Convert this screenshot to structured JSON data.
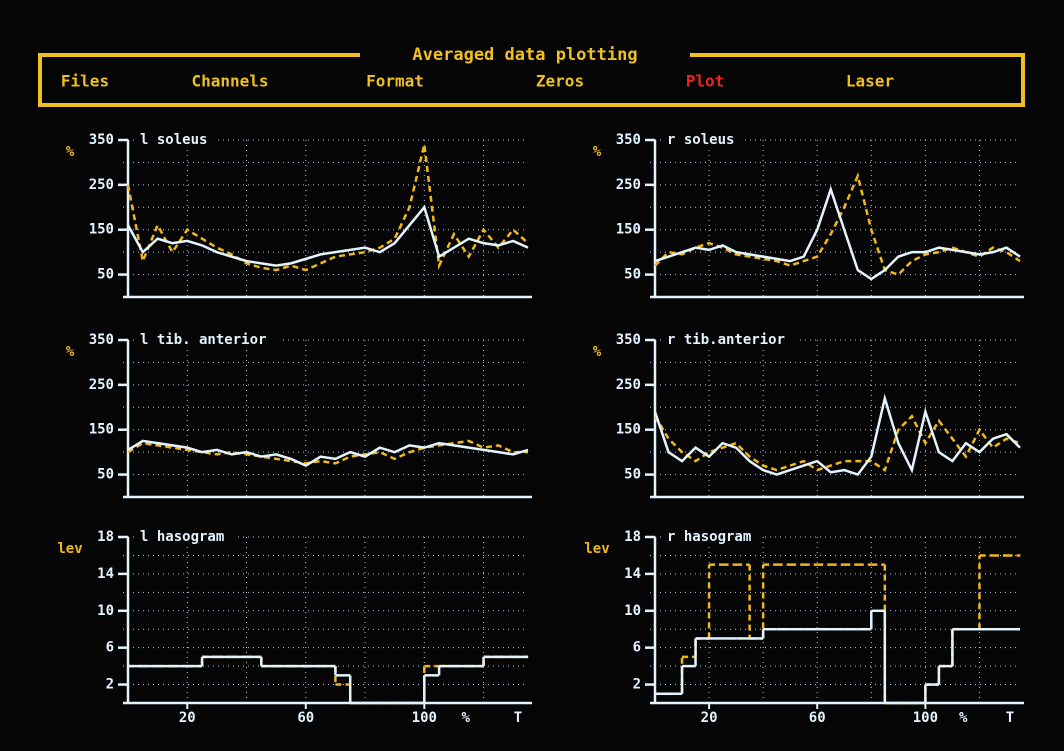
{
  "menu": {
    "title": "Averaged data plotting",
    "items": [
      "Files",
      "Channels",
      "Format",
      "Zeros",
      "Plot",
      "Laser"
    ],
    "active_index": 4,
    "color": "#f0c020",
    "active_color": "#e8281c"
  },
  "chart_data": [
    {
      "type": "line",
      "title": "l soleus",
      "y_unit": "%",
      "xlim": [
        0,
        135
      ],
      "ylim": [
        0,
        350
      ],
      "xgrid": [
        20,
        40,
        60,
        80,
        100,
        120
      ],
      "yticks": [
        50,
        150,
        250,
        350
      ],
      "yminor": [
        100,
        200,
        300
      ],
      "x": [
        0,
        5,
        10,
        15,
        20,
        25,
        30,
        35,
        40,
        45,
        50,
        55,
        60,
        65,
        70,
        75,
        80,
        85,
        90,
        95,
        100,
        105,
        110,
        115,
        120,
        125,
        130,
        135
      ],
      "series": [
        {
          "color": "#f0b818",
          "dashed": true,
          "values": [
            250,
            80,
            160,
            100,
            150,
            130,
            110,
            95,
            75,
            65,
            60,
            70,
            60,
            75,
            90,
            95,
            100,
            110,
            130,
            200,
            340,
            70,
            140,
            90,
            150,
            110,
            150,
            120
          ]
        },
        {
          "color": "#e4f4ff",
          "dashed": false,
          "values": [
            160,
            100,
            130,
            120,
            125,
            115,
            100,
            90,
            80,
            75,
            70,
            75,
            85,
            95,
            100,
            105,
            110,
            100,
            120,
            160,
            200,
            90,
            110,
            130,
            120,
            115,
            125,
            110
          ]
        }
      ]
    },
    {
      "type": "line",
      "title": "r soleus",
      "y_unit": "%",
      "xlim": [
        0,
        135
      ],
      "ylim": [
        0,
        350
      ],
      "xgrid": [
        20,
        40,
        60,
        80,
        100,
        120
      ],
      "yticks": [
        50,
        150,
        250,
        350
      ],
      "yminor": [
        100,
        200,
        300
      ],
      "x": [
        0,
        5,
        10,
        15,
        20,
        25,
        30,
        35,
        40,
        45,
        50,
        55,
        60,
        65,
        70,
        75,
        80,
        85,
        90,
        95,
        100,
        105,
        110,
        115,
        120,
        125,
        130,
        135
      ],
      "series": [
        {
          "color": "#f0b818",
          "dashed": true,
          "values": [
            70,
            100,
            95,
            110,
            120,
            110,
            95,
            90,
            85,
            80,
            70,
            80,
            90,
            140,
            200,
            270,
            150,
            60,
            50,
            80,
            95,
            100,
            110,
            100,
            90,
            110,
            100,
            80
          ]
        },
        {
          "color": "#e4f4ff",
          "dashed": false,
          "values": [
            80,
            90,
            100,
            110,
            105,
            115,
            100,
            95,
            90,
            85,
            80,
            90,
            150,
            240,
            150,
            60,
            40,
            60,
            90,
            100,
            100,
            110,
            105,
            100,
            95,
            100,
            110,
            90
          ]
        }
      ]
    },
    {
      "type": "line",
      "title": "l tib. anterior",
      "y_unit": "%",
      "xlim": [
        0,
        135
      ],
      "ylim": [
        0,
        350
      ],
      "xgrid": [
        20,
        40,
        60,
        80,
        100,
        120
      ],
      "yticks": [
        50,
        150,
        250,
        350
      ],
      "yminor": [
        100,
        200,
        300
      ],
      "x": [
        0,
        5,
        10,
        15,
        20,
        25,
        30,
        35,
        40,
        45,
        50,
        55,
        60,
        65,
        70,
        75,
        80,
        85,
        90,
        95,
        100,
        105,
        110,
        115,
        120,
        125,
        130,
        135
      ],
      "series": [
        {
          "color": "#f0b818",
          "dashed": true,
          "values": [
            100,
            120,
            115,
            110,
            105,
            100,
            95,
            100,
            95,
            90,
            85,
            80,
            75,
            80,
            75,
            90,
            95,
            100,
            85,
            100,
            110,
            115,
            120,
            125,
            110,
            115,
            100,
            100
          ]
        },
        {
          "color": "#e4f4ff",
          "dashed": false,
          "values": [
            105,
            125,
            120,
            115,
            110,
            100,
            105,
            95,
            100,
            90,
            95,
            85,
            70,
            90,
            85,
            100,
            90,
            110,
            100,
            115,
            110,
            120,
            115,
            110,
            105,
            100,
            95,
            105
          ]
        }
      ]
    },
    {
      "type": "line",
      "title": "r tib.anterior",
      "y_unit": "%",
      "xlim": [
        0,
        135
      ],
      "ylim": [
        0,
        350
      ],
      "xgrid": [
        20,
        40,
        60,
        80,
        100,
        120
      ],
      "yticks": [
        50,
        150,
        250,
        350
      ],
      "yminor": [
        100,
        200,
        300
      ],
      "x": [
        0,
        5,
        10,
        15,
        20,
        25,
        30,
        35,
        40,
        45,
        50,
        55,
        60,
        65,
        70,
        75,
        80,
        85,
        90,
        95,
        100,
        105,
        110,
        115,
        120,
        125,
        130,
        135
      ],
      "series": [
        {
          "color": "#f0b818",
          "dashed": true,
          "values": [
            180,
            130,
            100,
            80,
            100,
            110,
            120,
            90,
            70,
            60,
            70,
            80,
            60,
            70,
            80,
            80,
            80,
            60,
            150,
            180,
            120,
            170,
            130,
            90,
            150,
            110,
            130,
            120
          ]
        },
        {
          "color": "#e4f4ff",
          "dashed": false,
          "values": [
            190,
            100,
            80,
            110,
            90,
            120,
            110,
            80,
            60,
            50,
            60,
            70,
            80,
            55,
            60,
            50,
            90,
            220,
            120,
            60,
            190,
            100,
            80,
            120,
            100,
            130,
            140,
            110
          ]
        }
      ]
    },
    {
      "type": "step",
      "title": "l hasogram",
      "y_unit": "lev",
      "x_unit": "%",
      "x_end": "T",
      "xlim": [
        0,
        135
      ],
      "ylim": [
        0,
        18
      ],
      "xgrid": [
        20,
        40,
        60,
        80,
        100,
        120
      ],
      "xticks": [
        20,
        60,
        100
      ],
      "yticks": [
        2,
        6,
        10,
        14,
        18
      ],
      "yminor": [
        4,
        8,
        12,
        16
      ],
      "x": [
        0,
        5,
        10,
        15,
        20,
        25,
        30,
        35,
        40,
        45,
        50,
        55,
        60,
        65,
        70,
        75,
        80,
        85,
        90,
        95,
        100,
        105,
        110,
        115,
        120,
        125,
        130,
        135
      ],
      "series": [
        {
          "color": "#f0b818",
          "dashed": true,
          "values": [
            4,
            4,
            4,
            4,
            4,
            5,
            5,
            5,
            5,
            4,
            4,
            4,
            4,
            4,
            2,
            0,
            0,
            0,
            0,
            0,
            4,
            4,
            4,
            4,
            5,
            5,
            5,
            5
          ]
        },
        {
          "color": "#e4f4ff",
          "dashed": false,
          "values": [
            4,
            4,
            4,
            4,
            4,
            5,
            5,
            5,
            5,
            4,
            4,
            4,
            4,
            4,
            3,
            0,
            0,
            0,
            0,
            0,
            3,
            4,
            4,
            4,
            5,
            5,
            5,
            5
          ]
        }
      ]
    },
    {
      "type": "step",
      "title": "r hasogram",
      "y_unit": "lev",
      "x_unit": "%",
      "x_end": "T",
      "xlim": [
        0,
        135
      ],
      "ylim": [
        0,
        18
      ],
      "xgrid": [
        20,
        40,
        60,
        80,
        100,
        120
      ],
      "xticks": [
        20,
        60,
        100
      ],
      "yticks": [
        2,
        6,
        10,
        14,
        18
      ],
      "yminor": [
        4,
        8,
        12,
        16
      ],
      "x": [
        0,
        5,
        10,
        15,
        20,
        25,
        30,
        35,
        40,
        45,
        50,
        55,
        60,
        65,
        70,
        75,
        80,
        85,
        90,
        95,
        100,
        105,
        110,
        115,
        120,
        125,
        130,
        135
      ],
      "series": [
        {
          "color": "#f0b818",
          "dashed": true,
          "values": [
            1,
            1,
            5,
            7,
            15,
            15,
            15,
            7,
            15,
            15,
            15,
            15,
            15,
            15,
            15,
            15,
            15,
            0,
            0,
            0,
            2,
            4,
            8,
            8,
            16,
            16,
            16,
            16
          ]
        },
        {
          "color": "#e4f4ff",
          "dashed": false,
          "values": [
            1,
            1,
            4,
            7,
            7,
            7,
            7,
            7,
            8,
            8,
            8,
            8,
            8,
            8,
            8,
            8,
            10,
            0,
            0,
            0,
            2,
            4,
            8,
            8,
            8,
            8,
            8,
            8
          ]
        }
      ]
    }
  ]
}
